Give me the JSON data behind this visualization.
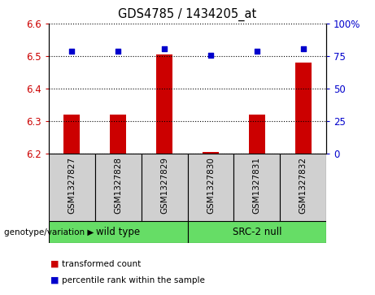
{
  "title": "GDS4785 / 1434205_at",
  "samples": [
    "GSM1327827",
    "GSM1327828",
    "GSM1327829",
    "GSM1327830",
    "GSM1327831",
    "GSM1327832"
  ],
  "bar_values": [
    6.32,
    6.32,
    6.505,
    6.205,
    6.32,
    6.48
  ],
  "bar_baseline": 6.2,
  "dot_values": [
    6.515,
    6.515,
    6.522,
    6.502,
    6.515,
    6.522
  ],
  "bar_color": "#cc0000",
  "dot_color": "#0000cc",
  "ylim_left": [
    6.2,
    6.6
  ],
  "yticks_left": [
    6.2,
    6.3,
    6.4,
    6.5,
    6.6
  ],
  "ylim_right": [
    0,
    100
  ],
  "yticks_right": [
    0,
    25,
    50,
    75,
    100
  ],
  "ytick_labels_right": [
    "0",
    "25",
    "50",
    "75",
    "100%"
  ],
  "groups": [
    {
      "label": "wild type",
      "indices": [
        0,
        1,
        2
      ],
      "color": "#66dd66"
    },
    {
      "label": "SRC-2 null",
      "indices": [
        3,
        4,
        5
      ],
      "color": "#66dd66"
    }
  ],
  "group_label_prefix": "genotype/variation",
  "legend_bar_label": "transformed count",
  "legend_dot_label": "percentile rank within the sample",
  "background_color": "#ffffff",
  "sample_box_color": "#d0d0d0",
  "dotted_line_color": "#000000",
  "left_axis_color": "#cc0000",
  "right_axis_color": "#0000cc"
}
